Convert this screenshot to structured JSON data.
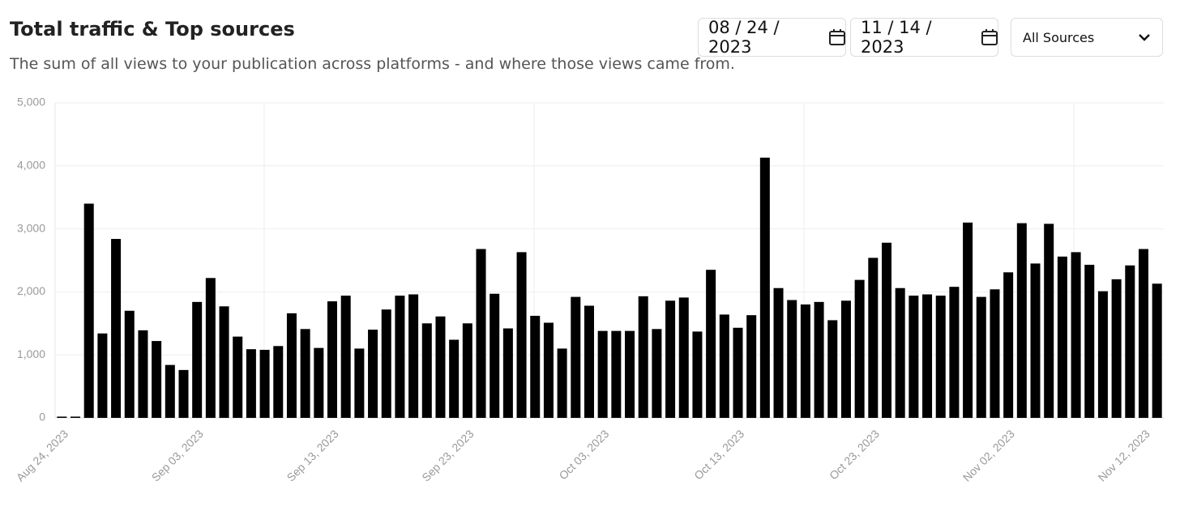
{
  "chart_data": {
    "type": "bar",
    "title": "Total traffic & Top sources",
    "subtitle": "The sum of all views to your publication across platforms - and where those views came from.",
    "controls": {
      "start_date": "08 / 24 / 2023",
      "end_date": "11 / 14 / 2023",
      "source": "All Sources"
    },
    "color": "#000000",
    "categories": [
      "Aug 24, 2023",
      null,
      null,
      null,
      null,
      null,
      null,
      null,
      null,
      null,
      "Sep 03, 2023",
      null,
      null,
      null,
      null,
      null,
      null,
      null,
      null,
      null,
      "Sep 13, 2023",
      null,
      null,
      null,
      null,
      null,
      null,
      null,
      null,
      null,
      "Sep 23, 2023",
      null,
      null,
      null,
      null,
      null,
      null,
      null,
      null,
      null,
      "Oct 03, 2023",
      null,
      null,
      null,
      null,
      null,
      null,
      null,
      null,
      null,
      "Oct 13, 2023",
      null,
      null,
      null,
      null,
      null,
      null,
      null,
      null,
      null,
      "Oct 23, 2023",
      null,
      null,
      null,
      null,
      null,
      null,
      null,
      null,
      null,
      "Nov 02, 2023",
      null,
      null,
      null,
      null,
      null,
      null,
      null,
      null,
      null,
      "Nov 12, 2023",
      null
    ],
    "values": [
      20,
      20,
      3400,
      1340,
      2840,
      1700,
      1390,
      1220,
      840,
      760,
      1840,
      2220,
      1770,
      1290,
      1090,
      1080,
      1140,
      1660,
      1410,
      1110,
      1850,
      1940,
      1100,
      1400,
      1720,
      1940,
      1960,
      1500,
      1610,
      1240,
      1500,
      2680,
      1970,
      1420,
      2630,
      1620,
      1510,
      1100,
      1920,
      1780,
      1380,
      1380,
      1380,
      1930,
      1410,
      1860,
      1910,
      1370,
      2350,
      1640,
      1430,
      1630,
      4130,
      2060,
      1870,
      1800,
      1840,
      1550,
      1860,
      2190,
      2540,
      2780,
      2060,
      1940,
      1960,
      1940,
      2080,
      3100,
      1920,
      2040,
      2310,
      3090,
      2450,
      3080,
      2560,
      2630,
      2430,
      2010,
      2200,
      2420,
      2680,
      2130
    ],
    "ylim": [
      0,
      5000
    ],
    "yticks": [
      0,
      {
        "value": 1000,
        "label": "1,000"
      },
      {
        "value": 2000,
        "label": "2,000"
      },
      {
        "value": 3000,
        "label": "3,000"
      },
      {
        "value": 4000,
        "label": "4,000"
      },
      {
        "value": 5000,
        "label": "5,000"
      }
    ],
    "grid": true
  }
}
